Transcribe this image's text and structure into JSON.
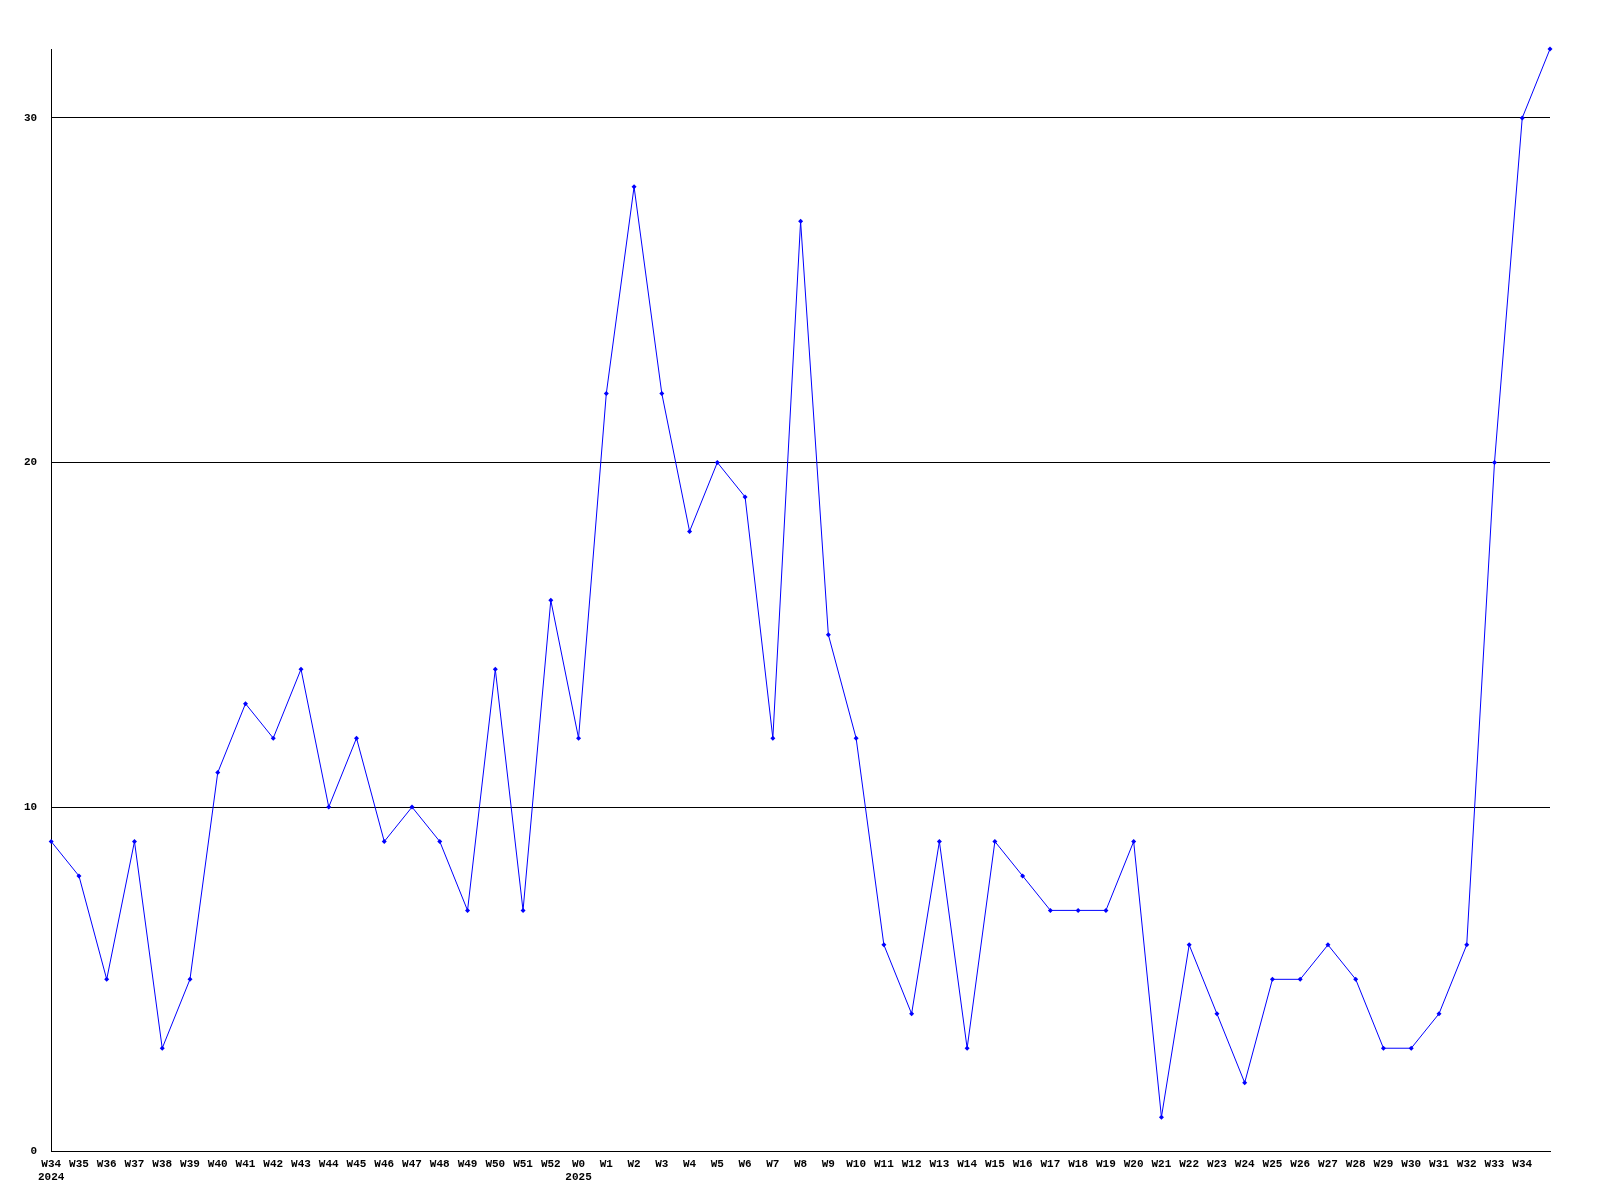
{
  "chart_data": {
    "type": "line",
    "categories": [
      "W34\n2024",
      "W35",
      "W36",
      "W37",
      "W38",
      "W39",
      "W40",
      "W41",
      "W42",
      "W43",
      "W44",
      "W45",
      "W46",
      "W47",
      "W48",
      "W49",
      "W50",
      "W51",
      "W52",
      "W0\n2025",
      "W1",
      "W2",
      "W3",
      "W4",
      "W5",
      "W6",
      "W7",
      "W8",
      "W9",
      "W10",
      "W11",
      "W12",
      "W13",
      "W14",
      "W15",
      "W16",
      "W17",
      "W18",
      "W19",
      "W20",
      "W21",
      "W22",
      "W23",
      "W24",
      "W25",
      "W26",
      "W27",
      "W28",
      "W29",
      "W30",
      "W31",
      "W32",
      "W33",
      "W34",
      null
    ],
    "series": [
      {
        "color": "#0000ff",
        "values": [
          9,
          8,
          5,
          9,
          3,
          5,
          11,
          13,
          12,
          14,
          10,
          12,
          9,
          10,
          9,
          7,
          14,
          7,
          16,
          12,
          22,
          28,
          22,
          18,
          20,
          19,
          12,
          27,
          15,
          12,
          6,
          4,
          9,
          3,
          9,
          8,
          7,
          7,
          7,
          9,
          1,
          6,
          4,
          2,
          5,
          5,
          6,
          5,
          3,
          3,
          4,
          6,
          20,
          30,
          32
        ]
      }
    ],
    "ylim": [
      0,
      32
    ],
    "yticks": [
      0,
      10,
      20,
      30
    ],
    "grid": "y",
    "marker": "diamond",
    "line_style": "solid",
    "legend": false
  }
}
